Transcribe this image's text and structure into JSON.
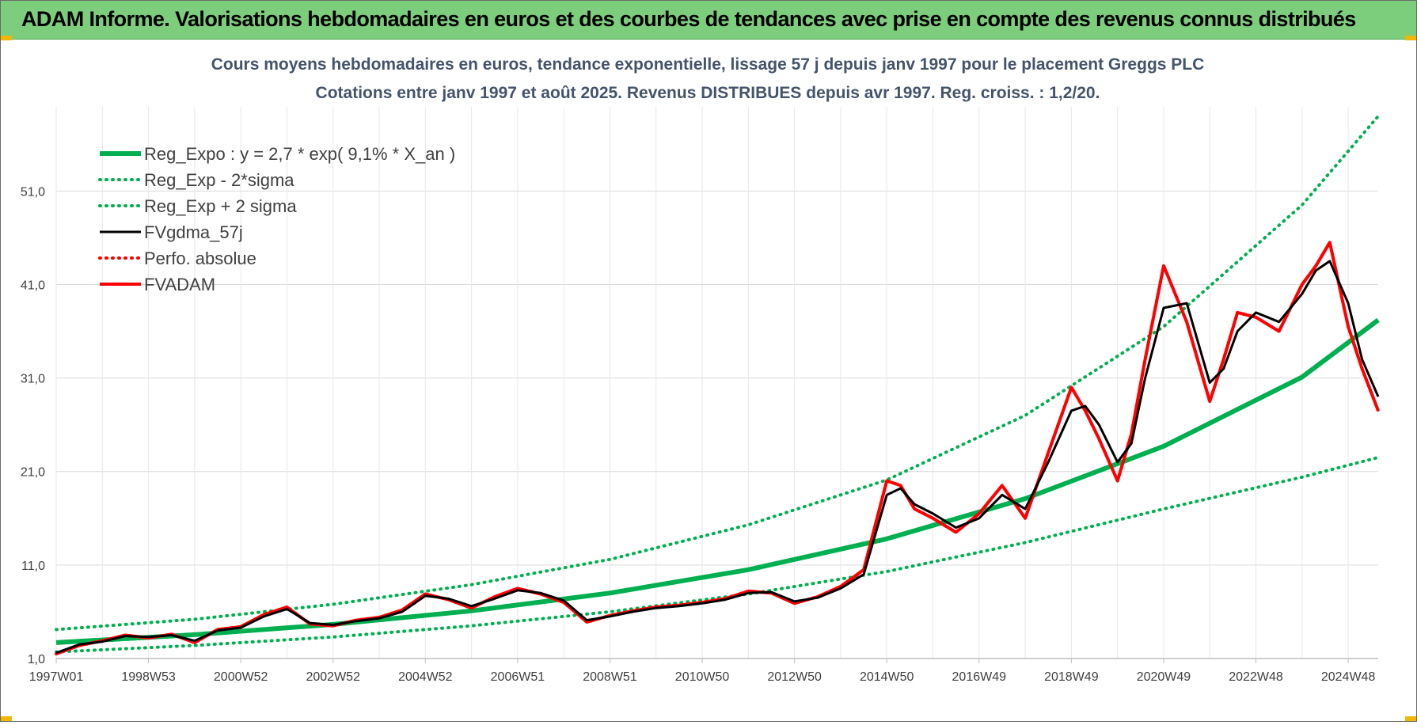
{
  "banner": {
    "title": "ADAM Informe. Valorisations hebdomadaires en euros et des courbes de tendances avec prise en compte des revenus connus distribués"
  },
  "chart_data": {
    "type": "line",
    "title_line1": "Cours moyens hebdomadaires en euros, tendance exponentielle, lissage 57 j depuis janv 1997 pour le placement Greggs PLC",
    "title_line2": "Cotations entre janv 1997 et août 2025. Revenus DISTRIBUES depuis avr 1997. Reg. croiss. : 1,2/20.",
    "xlabel": "",
    "ylabel": "",
    "x_range": [
      1997.0,
      2025.65
    ],
    "ylim": [
      1.0,
      60.0
    ],
    "y_ticks": [
      1.0,
      11.0,
      21.0,
      31.0,
      41.0,
      51.0
    ],
    "y_tick_labels": [
      "1,0",
      "11,0",
      "21,0",
      "31,0",
      "41,0",
      "51,0"
    ],
    "x_tick_labels": [
      "1997W01",
      "1998W53",
      "2000W52",
      "2002W52",
      "2004W52",
      "2006W51",
      "2008W51",
      "2010W50",
      "2012W50",
      "2014W50",
      "2016W49",
      "2018W49",
      "2020W49",
      "2022W48",
      "2024W48"
    ],
    "x_tick_positions": [
      1997.0,
      1999.0,
      2001.0,
      2003.0,
      2005.0,
      2007.0,
      2009.0,
      2011.0,
      2013.0,
      2015.0,
      2017.0,
      2019.0,
      2021.0,
      2023.0,
      2025.0
    ],
    "grid": true,
    "legend_position": "top-left",
    "colors": {
      "reg_expo": "#00b050",
      "sigma_bands": "#00b050",
      "fvgdma": "#000000",
      "perfo": "#ff0000",
      "fvadam": "#ff0000",
      "grid": "#d9d9d9"
    },
    "series": [
      {
        "name": "Reg_Expo : y = 2,7 * exp( 9,1% *  X_an )",
        "style": "solid-thick",
        "x": [
          1997.0,
          2000.0,
          2003.0,
          2006.0,
          2009.0,
          2012.0,
          2015.0,
          2018.0,
          2021.0,
          2024.0,
          2025.65
        ],
        "y": [
          2.7,
          3.55,
          4.65,
          6.1,
          8.0,
          10.5,
          13.8,
          18.1,
          23.7,
          31.1,
          37.2
        ]
      },
      {
        "name": "Reg_Exp - 2*sigma",
        "style": "dotted",
        "x": [
          1997.0,
          2000.0,
          2003.0,
          2006.0,
          2009.0,
          2012.0,
          2015.0,
          2018.0,
          2021.0,
          2024.0,
          2025.65
        ],
        "y": [
          1.7,
          2.4,
          3.3,
          4.5,
          6.0,
          7.9,
          10.3,
          13.4,
          17.0,
          20.4,
          22.5
        ]
      },
      {
        "name": "Reg_Exp + 2 sigma",
        "style": "dotted",
        "x": [
          1997.0,
          2000.0,
          2003.0,
          2006.0,
          2009.0,
          2012.0,
          2015.0,
          2018.0,
          2021.0,
          2024.0,
          2025.65
        ],
        "y": [
          4.1,
          5.2,
          6.8,
          8.9,
          11.6,
          15.3,
          20.1,
          27.0,
          36.5,
          49.5,
          59.0
        ]
      },
      {
        "name": "FVgdma_57j",
        "style": "solid-thin",
        "x": [
          1997.0,
          1997.5,
          1998.0,
          1998.5,
          1999.0,
          1999.5,
          2000.0,
          2000.5,
          2001.0,
          2001.5,
          2002.0,
          2002.5,
          2003.0,
          2003.5,
          2004.0,
          2004.5,
          2005.0,
          2005.5,
          2006.0,
          2006.5,
          2007.0,
          2007.5,
          2008.0,
          2008.5,
          2009.0,
          2009.5,
          2010.0,
          2010.5,
          2011.0,
          2011.5,
          2012.0,
          2012.5,
          2013.0,
          2013.5,
          2014.0,
          2014.5,
          2015.0,
          2015.3,
          2015.6,
          2016.0,
          2016.5,
          2017.0,
          2017.5,
          2018.0,
          2018.5,
          2019.0,
          2019.3,
          2019.6,
          2020.0,
          2020.3,
          2020.6,
          2021.0,
          2021.5,
          2022.0,
          2022.3,
          2022.6,
          2023.0,
          2023.5,
          2024.0,
          2024.3,
          2024.6,
          2025.0,
          2025.3,
          2025.65
        ],
        "y": [
          1.6,
          2.5,
          2.8,
          3.4,
          3.3,
          3.5,
          2.9,
          4.0,
          4.3,
          5.5,
          6.3,
          4.8,
          4.6,
          5.0,
          5.3,
          6.0,
          7.7,
          7.4,
          6.6,
          7.4,
          8.3,
          8.0,
          7.2,
          5.1,
          5.5,
          6.0,
          6.4,
          6.6,
          6.9,
          7.3,
          8.0,
          8.1,
          7.1,
          7.5,
          8.5,
          10.0,
          18.5,
          19.2,
          17.5,
          16.5,
          15.0,
          16.0,
          18.5,
          17.0,
          22.0,
          27.5,
          28.0,
          26.0,
          22.0,
          24.0,
          31.0,
          38.5,
          39.0,
          30.5,
          32.0,
          36.0,
          38.0,
          37.0,
          40.0,
          42.5,
          43.5,
          39.0,
          33.0,
          29.0
        ]
      },
      {
        "name": "Perfo. absolue",
        "style": "dotted",
        "x": [
          1997.0,
          1997.5,
          1998.0,
          1998.5,
          1999.0,
          1999.5,
          2000.0,
          2000.5,
          2001.0,
          2001.5,
          2002.0,
          2002.5,
          2003.0,
          2003.5,
          2004.0,
          2004.5,
          2005.0,
          2005.5,
          2006.0,
          2006.5,
          2007.0,
          2007.5,
          2008.0,
          2008.5,
          2009.0,
          2009.5,
          2010.0,
          2010.5,
          2011.0,
          2011.5,
          2012.0,
          2012.5,
          2013.0,
          2013.5,
          2014.0,
          2014.5,
          2015.0,
          2015.3,
          2015.6,
          2016.0,
          2016.5,
          2017.0,
          2017.5,
          2018.0,
          2018.5,
          2019.0,
          2019.3,
          2019.6,
          2020.0,
          2020.3,
          2020.6,
          2021.0,
          2021.5,
          2022.0,
          2022.3,
          2022.6,
          2023.0,
          2023.5,
          2024.0,
          2024.3,
          2024.6,
          2025.0,
          2025.3,
          2025.65
        ],
        "y": [
          1.5,
          2.4,
          2.9,
          3.5,
          3.2,
          3.6,
          2.7,
          4.1,
          4.4,
          5.7,
          6.5,
          4.7,
          4.5,
          5.1,
          5.4,
          6.2,
          7.9,
          7.3,
          6.4,
          7.6,
          8.5,
          7.9,
          7.0,
          4.9,
          5.6,
          6.1,
          6.5,
          6.7,
          7.0,
          7.4,
          8.2,
          8.0,
          6.9,
          7.6,
          8.7,
          10.5,
          20.0,
          19.5,
          17.0,
          16.0,
          14.5,
          16.5,
          19.5,
          16.0,
          23.0,
          30.0,
          27.5,
          24.5,
          20.0,
          25.0,
          33.0,
          43.0,
          37.0,
          28.5,
          33.0,
          38.0,
          37.5,
          36.0,
          41.0,
          43.0,
          45.5,
          36.5,
          32.0,
          27.5
        ]
      },
      {
        "name": "FVADAM",
        "style": "solid-medium",
        "x": [
          1997.0,
          1997.5,
          1998.0,
          1998.5,
          1999.0,
          1999.5,
          2000.0,
          2000.5,
          2001.0,
          2001.5,
          2002.0,
          2002.5,
          2003.0,
          2003.5,
          2004.0,
          2004.5,
          2005.0,
          2005.5,
          2006.0,
          2006.5,
          2007.0,
          2007.5,
          2008.0,
          2008.5,
          2009.0,
          2009.5,
          2010.0,
          2010.5,
          2011.0,
          2011.5,
          2012.0,
          2012.5,
          2013.0,
          2013.5,
          2014.0,
          2014.5,
          2015.0,
          2015.3,
          2015.6,
          2016.0,
          2016.5,
          2017.0,
          2017.5,
          2018.0,
          2018.5,
          2019.0,
          2019.3,
          2019.6,
          2020.0,
          2020.3,
          2020.6,
          2021.0,
          2021.5,
          2022.0,
          2022.3,
          2022.6,
          2023.0,
          2023.5,
          2024.0,
          2024.3,
          2024.6,
          2025.0,
          2025.3,
          2025.65
        ],
        "y": [
          1.5,
          2.4,
          2.9,
          3.5,
          3.2,
          3.6,
          2.7,
          4.1,
          4.4,
          5.7,
          6.5,
          4.7,
          4.5,
          5.1,
          5.4,
          6.2,
          7.9,
          7.3,
          6.4,
          7.6,
          8.5,
          7.9,
          7.0,
          4.9,
          5.6,
          6.1,
          6.5,
          6.7,
          7.0,
          7.4,
          8.2,
          8.0,
          6.9,
          7.6,
          8.7,
          10.5,
          20.0,
          19.5,
          17.0,
          16.0,
          14.5,
          16.5,
          19.5,
          16.0,
          23.0,
          30.0,
          27.5,
          24.5,
          20.0,
          25.0,
          33.0,
          43.0,
          37.0,
          28.5,
          33.0,
          38.0,
          37.5,
          36.0,
          41.0,
          43.0,
          45.5,
          36.5,
          32.0,
          27.5
        ]
      }
    ]
  }
}
